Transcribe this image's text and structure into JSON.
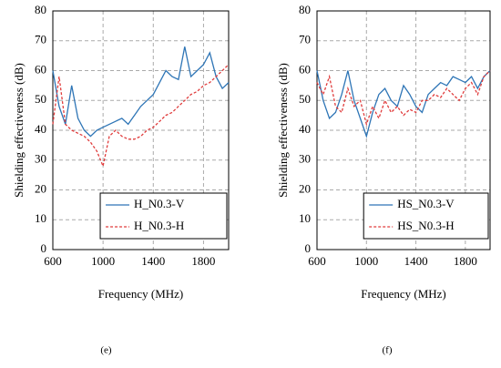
{
  "chart_data": [
    {
      "type": "line",
      "caption": "(e)",
      "xlabel": "Frequency (MHz)",
      "ylabel": "Shielding effectiveness (dB)",
      "x": [
        600,
        650,
        700,
        750,
        800,
        850,
        900,
        950,
        1000,
        1050,
        1100,
        1150,
        1200,
        1250,
        1300,
        1350,
        1400,
        1450,
        1500,
        1550,
        1600,
        1650,
        1700,
        1750,
        1800,
        1850,
        1900,
        1950,
        2000
      ],
      "series": [
        {
          "name": "H_N0.3-V",
          "color": "#2e75b6",
          "linestyle": "solid",
          "values": [
            60,
            48,
            42,
            55,
            44,
            40,
            38,
            40,
            41,
            42,
            43,
            44,
            42,
            45,
            48,
            50,
            52,
            56,
            60,
            58,
            57,
            68,
            58,
            60,
            62,
            66,
            58,
            54,
            56
          ]
        },
        {
          "name": "H_N0.3-H",
          "color": "#e03c3c",
          "linestyle": "dashed",
          "values": [
            42,
            58,
            42,
            40,
            39,
            38,
            36,
            33,
            28,
            38,
            40,
            38,
            37,
            37,
            38,
            40,
            41,
            43,
            45,
            46,
            48,
            50,
            52,
            53,
            55,
            56,
            58,
            60,
            62
          ]
        }
      ],
      "xlim": [
        600,
        2000
      ],
      "xticks": [
        600,
        1000,
        1400,
        1800
      ],
      "ylim": [
        0,
        80
      ],
      "yticks": [
        0,
        10,
        20,
        30,
        40,
        50,
        60,
        70,
        80
      ],
      "grid": true,
      "legend": "lower right"
    },
    {
      "type": "line",
      "caption": "(f)",
      "xlabel": "Frequency (MHz)",
      "ylabel": "Shielding effectiveness (dB)",
      "x": [
        600,
        650,
        700,
        750,
        800,
        850,
        900,
        950,
        1000,
        1050,
        1100,
        1150,
        1200,
        1250,
        1300,
        1350,
        1400,
        1450,
        1500,
        1550,
        1600,
        1650,
        1700,
        1750,
        1800,
        1850,
        1900,
        1950,
        2000
      ],
      "series": [
        {
          "name": "HS_N0.3-V",
          "color": "#2e75b6",
          "linestyle": "solid",
          "values": [
            60,
            50,
            44,
            46,
            52,
            60,
            50,
            44,
            38,
            46,
            52,
            54,
            50,
            48,
            55,
            52,
            48,
            46,
            52,
            54,
            56,
            55,
            58,
            57,
            56,
            58,
            54,
            58,
            60
          ]
        },
        {
          "name": "HS_N0.3-H",
          "color": "#e03c3c",
          "linestyle": "dashed",
          "values": [
            56,
            52,
            58,
            48,
            46,
            54,
            48,
            50,
            42,
            48,
            44,
            50,
            46,
            48,
            45,
            47,
            46,
            50,
            50,
            52,
            51,
            54,
            52,
            50,
            54,
            56,
            52,
            58,
            60
          ]
        }
      ],
      "xlim": [
        600,
        2000
      ],
      "xticks": [
        600,
        1000,
        1400,
        1800
      ],
      "ylim": [
        0,
        80
      ],
      "yticks": [
        0,
        10,
        20,
        30,
        40,
        50,
        60,
        70,
        80
      ],
      "grid": true,
      "legend": "lower right"
    }
  ]
}
